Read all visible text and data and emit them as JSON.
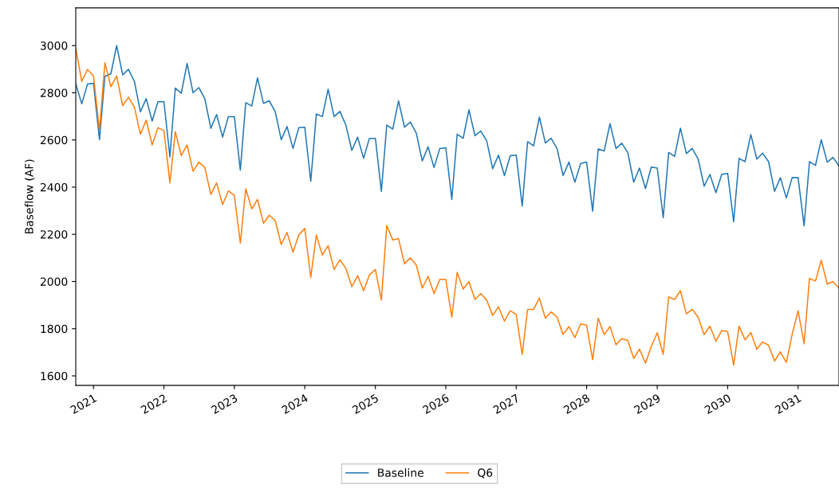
{
  "chart_data": {
    "type": "line",
    "ylabel": "Baseflow (AF)",
    "x": [
      "2020-10",
      "2020-11",
      "2020-12",
      "2021-01",
      "2021-02",
      "2021-03",
      "2021-04",
      "2021-05",
      "2021-06",
      "2021-07",
      "2021-08",
      "2021-09",
      "2021-10",
      "2021-11",
      "2021-12",
      "2022-01",
      "2022-02",
      "2022-03",
      "2022-04",
      "2022-05",
      "2022-06",
      "2022-07",
      "2022-08",
      "2022-09",
      "2022-10",
      "2022-11",
      "2022-12",
      "2023-01",
      "2023-02",
      "2023-03",
      "2023-04",
      "2023-05",
      "2023-06",
      "2023-07",
      "2023-08",
      "2023-09",
      "2023-10",
      "2023-11",
      "2023-12",
      "2024-01",
      "2024-02",
      "2024-03",
      "2024-04",
      "2024-05",
      "2024-06",
      "2024-07",
      "2024-08",
      "2024-09",
      "2024-10",
      "2024-11",
      "2024-12",
      "2025-01",
      "2025-02",
      "2025-03",
      "2025-04",
      "2025-05",
      "2025-06",
      "2025-07",
      "2025-08",
      "2025-09",
      "2025-10",
      "2025-11",
      "2025-12",
      "2026-01",
      "2026-02",
      "2026-03",
      "2026-04",
      "2026-05",
      "2026-06",
      "2026-07",
      "2026-08",
      "2026-09",
      "2026-10",
      "2026-11",
      "2026-12",
      "2027-01",
      "2027-02",
      "2027-03",
      "2027-04",
      "2027-05",
      "2027-06",
      "2027-07",
      "2027-08",
      "2027-09",
      "2027-10",
      "2027-11",
      "2027-12",
      "2028-01",
      "2028-02",
      "2028-03",
      "2028-04",
      "2028-05",
      "2028-06",
      "2028-07",
      "2028-08",
      "2028-09",
      "2028-10",
      "2028-11",
      "2028-12",
      "2029-01",
      "2029-02",
      "2029-03",
      "2029-04",
      "2029-05",
      "2029-06",
      "2029-07",
      "2029-08",
      "2029-09",
      "2029-10",
      "2029-11",
      "2029-12",
      "2030-01",
      "2030-02",
      "2030-03",
      "2030-04",
      "2030-05",
      "2030-06",
      "2030-07",
      "2030-08",
      "2030-09",
      "2030-10",
      "2030-11",
      "2030-12",
      "2031-01",
      "2031-02",
      "2031-03",
      "2031-04",
      "2031-05",
      "2031-06",
      "2031-07",
      "2031-08"
    ],
    "series": [
      {
        "name": "Baseline",
        "color": "#1f77b4",
        "values": [
          2837,
          2753,
          2837,
          2840,
          2601,
          2870,
          2880,
          3000,
          2876,
          2899,
          2848,
          2719,
          2775,
          2680,
          2762,
          2762,
          2528,
          2820,
          2798,
          2924,
          2800,
          2822,
          2775,
          2649,
          2708,
          2612,
          2699,
          2699,
          2472,
          2758,
          2744,
          2863,
          2755,
          2766,
          2719,
          2601,
          2657,
          2564,
          2652,
          2654,
          2425,
          2710,
          2699,
          2815,
          2699,
          2721,
          2663,
          2556,
          2612,
          2522,
          2607,
          2607,
          2382,
          2663,
          2646,
          2766,
          2654,
          2676,
          2629,
          2511,
          2571,
          2483,
          2564,
          2567,
          2348,
          2624,
          2607,
          2728,
          2618,
          2638,
          2596,
          2478,
          2536,
          2449,
          2533,
          2536,
          2320,
          2593,
          2575,
          2697,
          2587,
          2607,
          2562,
          2449,
          2506,
          2421,
          2500,
          2506,
          2298,
          2562,
          2553,
          2669,
          2564,
          2586,
          2547,
          2421,
          2481,
          2394,
          2485,
          2481,
          2270,
          2547,
          2530,
          2650,
          2542,
          2564,
          2519,
          2404,
          2454,
          2376,
          2454,
          2458,
          2253,
          2522,
          2508,
          2623,
          2519,
          2544,
          2508,
          2382,
          2440,
          2354,
          2440,
          2440,
          2236,
          2508,
          2492,
          2601,
          2506,
          2526,
          2490
        ]
      },
      {
        "name": "Q6",
        "color": "#ff7f0e",
        "values": [
          2989,
          2848,
          2899,
          2871,
          2640,
          2927,
          2826,
          2871,
          2745,
          2781,
          2739,
          2624,
          2684,
          2579,
          2652,
          2640,
          2418,
          2635,
          2534,
          2579,
          2467,
          2506,
          2483,
          2369,
          2418,
          2326,
          2384,
          2365,
          2163,
          2393,
          2308,
          2348,
          2247,
          2281,
          2258,
          2157,
          2208,
          2124,
          2197,
          2225,
          2017,
          2197,
          2112,
          2152,
          2051,
          2092,
          2056,
          1978,
          2025,
          1961,
          2028,
          2051,
          1921,
          2238,
          2176,
          2182,
          2075,
          2100,
          2070,
          1972,
          2022,
          1949,
          2009,
          2009,
          1849,
          2039,
          1968,
          2000,
          1924,
          1949,
          1921,
          1856,
          1893,
          1832,
          1876,
          1860,
          1691,
          1882,
          1882,
          1930,
          1845,
          1871,
          1849,
          1775,
          1809,
          1762,
          1820,
          1815,
          1669,
          1845,
          1775,
          1809,
          1732,
          1758,
          1750,
          1674,
          1713,
          1654,
          1725,
          1783,
          1691,
          1935,
          1924,
          1961,
          1863,
          1882,
          1849,
          1775,
          1811,
          1747,
          1792,
          1787,
          1646,
          1811,
          1753,
          1784,
          1713,
          1744,
          1730,
          1663,
          1702,
          1657,
          1775,
          1876,
          1736,
          2013,
          2002,
          2090,
          1989,
          2000,
          1972
        ]
      }
    ],
    "xlim": [
      "2020-10",
      "2031-08"
    ],
    "xticks": [
      "2021",
      "2022",
      "2023",
      "2024",
      "2025",
      "2026",
      "2027",
      "2028",
      "2029",
      "2030",
      "2031"
    ],
    "ylim": [
      1560,
      3160
    ],
    "yticks": [
      1600,
      1800,
      2000,
      2200,
      2400,
      2600,
      2800,
      3000
    ],
    "legend": "bottom",
    "grid": false
  }
}
